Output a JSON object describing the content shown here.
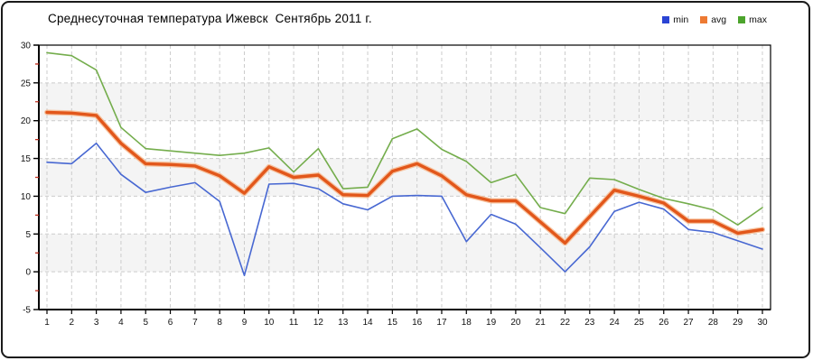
{
  "title": "Среднесуточная температура Ижевск  Сентябрь 2011 г.",
  "legend": {
    "items": [
      {
        "label": "min",
        "color": "#2b44d4"
      },
      {
        "label": "avg",
        "color": "#ed7a33"
      },
      {
        "label": "max",
        "color": "#4ca42c"
      }
    ]
  },
  "chart_data": {
    "type": "line",
    "title": "Среднесуточная температура Ижевск  Сентябрь 2011 г.",
    "categories": [
      1,
      2,
      3,
      4,
      5,
      6,
      7,
      8,
      9,
      10,
      11,
      12,
      13,
      14,
      15,
      16,
      17,
      18,
      19,
      20,
      21,
      22,
      23,
      24,
      25,
      26,
      27,
      28,
      29,
      30
    ],
    "series": [
      {
        "name": "min",
        "color": "#4868d2",
        "line_width": 1.6,
        "values": [
          14.5,
          14.3,
          17.0,
          12.9,
          10.5,
          11.2,
          11.8,
          9.3,
          -0.5,
          11.6,
          11.7,
          11.0,
          9.0,
          8.2,
          10.0,
          10.1,
          10.0,
          4.0,
          7.6,
          6.3,
          3.2,
          0.0,
          3.3,
          8.0,
          9.2,
          8.3,
          5.6,
          5.2,
          4.1,
          3.0
        ]
      },
      {
        "name": "avg",
        "color": "#e2571b",
        "halo_color": "#f6bb92",
        "line_width": 3.4,
        "values": [
          21.1,
          21.0,
          20.7,
          17.0,
          14.3,
          14.2,
          14.0,
          12.7,
          10.4,
          13.9,
          12.5,
          12.8,
          10.2,
          10.1,
          13.3,
          14.3,
          12.7,
          10.2,
          9.4,
          9.4,
          6.6,
          3.8,
          7.3,
          10.8,
          10.0,
          9.1,
          6.7,
          6.7,
          5.1,
          5.6
        ]
      },
      {
        "name": "max",
        "color": "#74ad4c",
        "line_width": 1.6,
        "values": [
          29.0,
          28.6,
          26.7,
          19.1,
          16.3,
          16.0,
          15.7,
          15.4,
          15.7,
          16.4,
          13.2,
          16.3,
          11.0,
          11.2,
          17.6,
          18.9,
          16.2,
          14.6,
          11.8,
          12.9,
          8.5,
          7.7,
          12.4,
          12.2,
          10.9,
          9.7,
          9.0,
          8.2,
          6.2,
          8.5
        ]
      }
    ],
    "ylim": [
      -5,
      30
    ],
    "ytick_step": 5,
    "ytick_labels": [
      "30",
      "25",
      "20",
      "15",
      "10",
      "5",
      "0",
      "-5"
    ],
    "grid": "dashed",
    "band_color": "#f4f4f4",
    "grid_color": "#cccccc",
    "axis_color": "#000000",
    "minor_tick_color": "#c03020",
    "legend_position": "top-right"
  }
}
